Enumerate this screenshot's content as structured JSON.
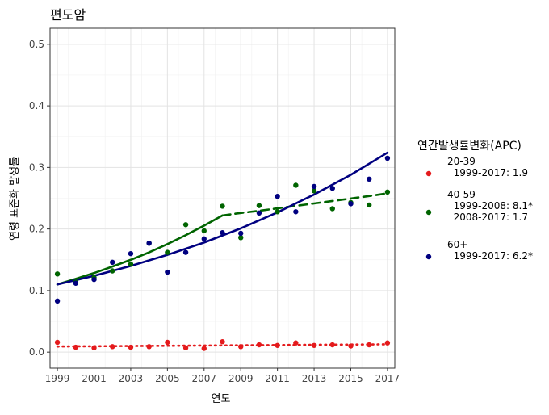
{
  "chart_data": {
    "type": "scatter",
    "title": "편도암",
    "xlabel": "연도",
    "ylabel": "연령 표준화 발생률",
    "xlim": [
      1998.6,
      2017.4
    ],
    "ylim": [
      -0.026,
      0.526
    ],
    "x_ticks": [
      "1999",
      "2001",
      "2003",
      "2005",
      "2007",
      "2009",
      "2011",
      "2013",
      "2015",
      "2017"
    ],
    "y_ticks": [
      "0.0",
      "0.1",
      "0.2",
      "0.3",
      "0.4",
      "0.5"
    ],
    "grid": true,
    "legend_position": "right",
    "legend_title": "연간발생률변화(APC)",
    "series": [
      {
        "name": "20-39",
        "legend_lines": [
          "20-39",
          "  1999-2017: 1.9"
        ],
        "color": "#e41a1c",
        "line_style": "dotted",
        "x": [
          1999,
          2000,
          2001,
          2002,
          2003,
          2004,
          2005,
          2006,
          2007,
          2008,
          2009,
          2010,
          2011,
          2012,
          2013,
          2014,
          2015,
          2016,
          2017
        ],
        "y": [
          0.016,
          0.008,
          0.007,
          0.009,
          0.008,
          0.009,
          0.016,
          0.007,
          0.006,
          0.017,
          0.009,
          0.012,
          0.011,
          0.015,
          0.011,
          0.012,
          0.01,
          0.012,
          0.015
        ],
        "trend": [
          {
            "x": [
              1999,
              2017
            ],
            "y": [
              0.0092,
              0.0128
            ],
            "style": "dotted"
          }
        ]
      },
      {
        "name": "40-59",
        "legend_lines": [
          "40-59",
          "  1999-2008: 8.1*",
          "  2008-2017: 1.7"
        ],
        "color": "#006400",
        "line_style": "solid-then-dashed",
        "x": [
          1999,
          2000,
          2001,
          2002,
          2003,
          2004,
          2005,
          2006,
          2007,
          2008,
          2009,
          2010,
          2011,
          2012,
          2013,
          2014,
          2015,
          2016,
          2017
        ],
        "y": [
          0.127,
          0.114,
          0.121,
          0.132,
          0.143,
          0.177,
          0.162,
          0.207,
          0.197,
          0.237,
          0.186,
          0.238,
          0.228,
          0.271,
          0.262,
          0.233,
          0.243,
          0.239,
          0.26
        ],
        "trend": [
          {
            "x": [
              1999,
              2000,
              2001,
              2002,
              2003,
              2004,
              2005,
              2006,
              2007,
              2008
            ],
            "y": [
              0.11,
              0.119,
              0.1285,
              0.139,
              0.15,
              0.162,
              0.1755,
              0.19,
              0.2055,
              0.222
            ],
            "style": "solid"
          },
          {
            "x": [
              2008,
              2009,
              2010,
              2011,
              2012,
              2013,
              2014,
              2015,
              2016,
              2017
            ],
            "y": [
              0.222,
              0.226,
              0.2295,
              0.2335,
              0.2375,
              0.2415,
              0.2455,
              0.2495,
              0.2535,
              0.258
            ],
            "style": "dashed"
          }
        ]
      },
      {
        "name": "60+",
        "legend_lines": [
          "60+",
          "  1999-2017: 6.2*"
        ],
        "color": "#000080",
        "line_style": "solid",
        "x": [
          1999,
          2000,
          2001,
          2002,
          2003,
          2004,
          2005,
          2006,
          2007,
          2008,
          2009,
          2010,
          2011,
          2012,
          2013,
          2014,
          2015,
          2016,
          2017
        ],
        "y": [
          0.083,
          0.112,
          0.118,
          0.146,
          0.16,
          0.177,
          0.13,
          0.162,
          0.184,
          0.194,
          0.193,
          0.226,
          0.253,
          0.228,
          0.269,
          0.266,
          0.241,
          0.281,
          0.315
        ],
        "trend": [
          {
            "x": [
              1999,
              2001,
              2003,
              2005,
              2007,
              2009,
              2011,
              2013,
              2015,
              2017
            ],
            "y": [
              0.11,
              0.124,
              0.14,
              0.158,
              0.178,
              0.201,
              0.227,
              0.256,
              0.288,
              0.324
            ],
            "style": "solid"
          }
        ]
      }
    ]
  }
}
